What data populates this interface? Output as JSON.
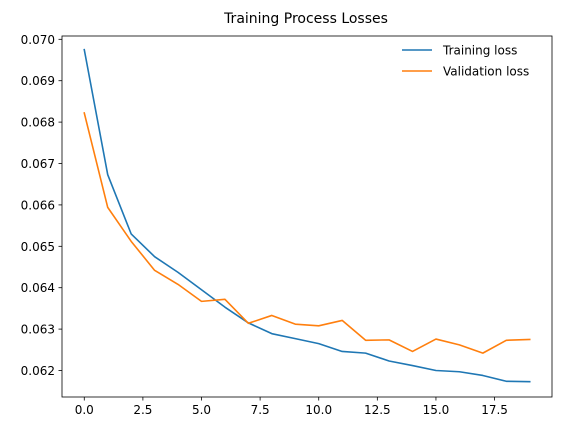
{
  "chart_data": {
    "type": "line",
    "title": "Training Process Losses",
    "xlabel": "",
    "ylabel": "",
    "xlim": [
      -0.95,
      19.95
    ],
    "ylim": [
      0.06136,
      0.07008
    ],
    "xticks": [
      0.0,
      2.5,
      5.0,
      7.5,
      10.0,
      12.5,
      15.0,
      17.5
    ],
    "xtick_labels": [
      "0.0",
      "2.5",
      "5.0",
      "7.5",
      "10.0",
      "12.5",
      "15.0",
      "17.5"
    ],
    "yticks": [
      0.062,
      0.063,
      0.064,
      0.065,
      0.066,
      0.067,
      0.068,
      0.069,
      0.07
    ],
    "ytick_labels": [
      "0.062",
      "0.063",
      "0.064",
      "0.065",
      "0.066",
      "0.067",
      "0.068",
      "0.069",
      "0.070"
    ],
    "grid": false,
    "legend_position": "top-right",
    "x": [
      0,
      1,
      2,
      3,
      4,
      5,
      6,
      7,
      8,
      9,
      10,
      11,
      12,
      13,
      14,
      15,
      16,
      17,
      18,
      19
    ],
    "series": [
      {
        "name": "Training loss",
        "color": "#1f77b4",
        "values": [
          0.06975,
          0.06673,
          0.0653,
          0.06475,
          0.06437,
          0.06395,
          0.06353,
          0.06315,
          0.06289,
          0.06277,
          0.06265,
          0.06246,
          0.06242,
          0.06223,
          0.06212,
          0.062,
          0.06197,
          0.06188,
          0.06174,
          0.06173
        ]
      },
      {
        "name": "Validation loss",
        "color": "#ff7f0e",
        "values": [
          0.06822,
          0.06594,
          0.06512,
          0.06442,
          0.06408,
          0.06367,
          0.06372,
          0.06314,
          0.06333,
          0.06312,
          0.06308,
          0.06321,
          0.06273,
          0.06274,
          0.06246,
          0.06276,
          0.06262,
          0.06242,
          0.06273,
          0.06275
        ]
      }
    ]
  }
}
